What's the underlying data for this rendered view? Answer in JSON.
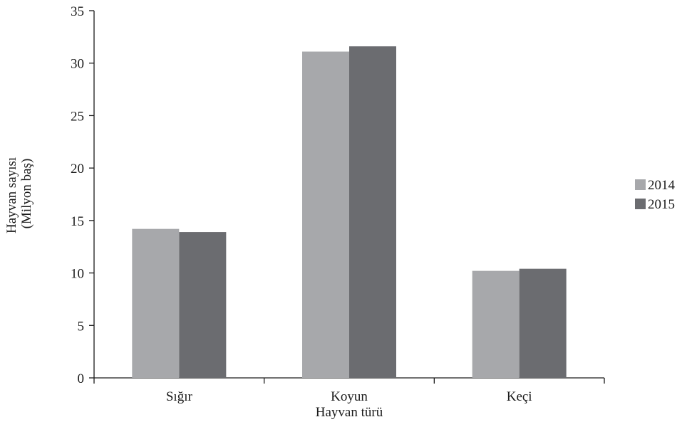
{
  "chart_data": {
    "type": "bar",
    "title": "",
    "xlabel": "Hayvan türü",
    "ylabel_lines": [
      "Hayvan sayısı",
      "(Milyon baş)"
    ],
    "categories": [
      "Sığır",
      "Koyun",
      "Keçi"
    ],
    "series": [
      {
        "name": "2014",
        "values": [
          14.2,
          31.1,
          10.2
        ],
        "color": "#a7a8ab"
      },
      {
        "name": "2015",
        "values": [
          13.9,
          31.6,
          10.4
        ],
        "color": "#6b6c70"
      }
    ],
    "ylim": [
      0,
      35
    ],
    "yticks": [
      0,
      5,
      10,
      15,
      20,
      25,
      30,
      35
    ],
    "grid": false,
    "legend_position": "right"
  }
}
